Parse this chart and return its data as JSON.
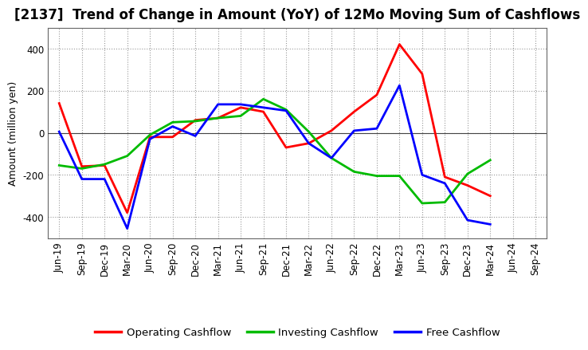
{
  "title": "[2137]  Trend of Change in Amount (YoY) of 12Mo Moving Sum of Cashflows",
  "ylabel": "Amount (million yen)",
  "x_labels": [
    "Jun-19",
    "Sep-19",
    "Dec-19",
    "Mar-20",
    "Jun-20",
    "Sep-20",
    "Dec-20",
    "Mar-21",
    "Jun-21",
    "Sep-21",
    "Dec-21",
    "Mar-22",
    "Jun-22",
    "Sep-22",
    "Dec-22",
    "Mar-23",
    "Jun-23",
    "Sep-23",
    "Dec-23",
    "Mar-24",
    "Jun-24",
    "Sep-24"
  ],
  "operating": [
    140,
    -160,
    -155,
    -380,
    -20,
    -20,
    60,
    70,
    120,
    100,
    -70,
    -50,
    10,
    100,
    180,
    420,
    280,
    -210,
    -250,
    -300,
    null,
    null
  ],
  "investing": [
    -155,
    -170,
    -150,
    -110,
    -10,
    50,
    55,
    70,
    80,
    160,
    110,
    5,
    -120,
    -185,
    -205,
    -205,
    -335,
    -330,
    -195,
    -130,
    null,
    null
  ],
  "free": [
    5,
    -220,
    -220,
    -455,
    -30,
    30,
    -15,
    135,
    135,
    120,
    105,
    -50,
    -120,
    10,
    20,
    225,
    -200,
    -240,
    -415,
    -435,
    null,
    null
  ],
  "ylim": [
    -500,
    500
  ],
  "yticks": [
    -400,
    -200,
    0,
    200,
    400
  ],
  "legend_labels": [
    "Operating Cashflow",
    "Investing Cashflow",
    "Free Cashflow"
  ],
  "colors": [
    "#ff0000",
    "#00bb00",
    "#0000ff"
  ],
  "background_color": "#ffffff",
  "grid_color": "#999999",
  "title_fontsize": 12,
  "axis_fontsize": 9,
  "tick_fontsize": 8.5
}
